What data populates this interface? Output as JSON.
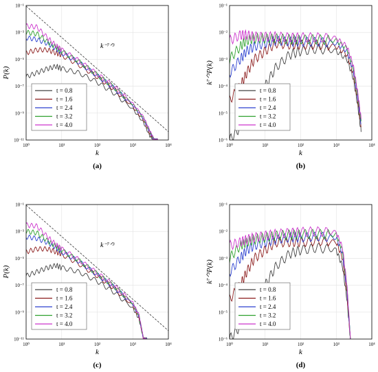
{
  "chart_data": [
    {
      "type": "line",
      "panel_label": "(a)",
      "xlabel": "k",
      "ylabel": "P(k)",
      "xscale": "log",
      "yscale": "log",
      "xlim": [
        1,
        10000
      ],
      "ylim": [
        1e-11,
        0.1
      ],
      "x_ticks": [
        "10⁰",
        "10¹",
        "10²",
        "10³",
        "10⁴"
      ],
      "y_ticks": [
        "10⁻¹¹",
        "10⁻⁹",
        "10⁻⁷",
        "10⁻⁵",
        "10⁻³",
        "10⁻¹"
      ],
      "reference_line": {
        "label": "k⁻⁷ᐟ³",
        "slope": -2.333,
        "x": [
          1,
          10000
        ],
        "y": [
          0.09,
          4.2e-11
        ]
      },
      "legend_position": "bottom-left",
      "series": [
        {
          "name": "t = 0.8",
          "color": "#404040",
          "x": [
            1,
            2,
            4,
            7,
            10,
            30,
            100,
            300,
            1000,
            2000,
            3000,
            4000,
            5000
          ],
          "y": [
            5e-07,
            1e-06,
            2e-06,
            3e-06,
            2e-06,
            1e-06,
            2e-07,
            3e-08,
            2e-09,
            2e-10,
            2e-11,
            1e-11,
            1e-11
          ]
        },
        {
          "name": "t = 1.6",
          "color": "#8b1a1a",
          "x": [
            1,
            2,
            4,
            7,
            10,
            30,
            100,
            300,
            1000,
            2000,
            3000,
            4000,
            5000
          ],
          "y": [
            3e-05,
            5e-05,
            5e-05,
            3e-05,
            2e-05,
            4e-06,
            5e-07,
            6e-08,
            3e-09,
            3e-10,
            3e-11,
            1e-11,
            1e-11
          ]
        },
        {
          "name": "t = 2.4",
          "color": "#2a3fcf",
          "x": [
            1,
            2,
            4,
            7,
            10,
            30,
            100,
            300,
            1000,
            2000,
            3000,
            4000,
            5000
          ],
          "y": [
            0.0004,
            0.0003,
            0.00015,
            6e-05,
            3e-05,
            6e-06,
            6e-07,
            7e-08,
            4e-09,
            4e-10,
            4e-11,
            1e-11,
            1e-11
          ]
        },
        {
          "name": "t = 3.2",
          "color": "#2ca02c",
          "x": [
            1,
            2,
            4,
            7,
            10,
            30,
            100,
            300,
            1000,
            2000,
            3000,
            4000,
            5000
          ],
          "y": [
            0.001,
            0.0008,
            0.0002,
            8e-05,
            4e-05,
            7e-06,
            7e-07,
            8e-08,
            4.5e-09,
            4.5e-10,
            4.5e-11,
            1e-11,
            1e-11
          ]
        },
        {
          "name": "t = 4.0",
          "color": "#cc33cc",
          "x": [
            1,
            2,
            4,
            7,
            10,
            30,
            100,
            300,
            1000,
            2000,
            3000,
            4000,
            5000
          ],
          "y": [
            0.003,
            0.0025,
            0.0004,
            0.0001,
            5e-05,
            8e-06,
            8e-07,
            9e-08,
            5e-09,
            5e-10,
            5e-11,
            1e-11,
            1e-11
          ]
        }
      ]
    },
    {
      "type": "line",
      "panel_label": "(b)",
      "xlabel": "k",
      "ylabel": "k⁷ᐟ³P(k)",
      "xscale": "log",
      "yscale": "log",
      "xlim": [
        1,
        10000
      ],
      "ylim": [
        1e-06,
        0.1
      ],
      "x_ticks": [
        "10⁰",
        "10¹",
        "10²",
        "10³",
        "10⁴"
      ],
      "y_ticks": [
        "10⁻⁶",
        "10⁻⁵",
        "10⁻⁴",
        "10⁻³",
        "10⁻²",
        "10⁻¹"
      ],
      "legend_position": "bottom-left",
      "series": [
        {
          "name": "t = 0.8",
          "color": "#404040",
          "x": [
            1,
            2,
            3,
            5,
            10,
            20,
            50,
            100,
            300,
            1000,
            2000,
            3000,
            4000,
            5000
          ],
          "y": [
            1e-06,
            3e-06,
            1e-05,
            3e-05,
            0.0001,
            0.0005,
            0.0015,
            0.002,
            0.0025,
            0.002,
            0.001,
            0.0002,
            2e-05,
            2e-06
          ]
        },
        {
          "name": "t = 1.6",
          "color": "#8b1a1a",
          "x": [
            1,
            2,
            3,
            5,
            10,
            20,
            50,
            100,
            300,
            1000,
            2000,
            3000,
            4000,
            5000
          ],
          "y": [
            3e-05,
            0.0001,
            0.0003,
            0.001,
            0.002,
            0.004,
            0.0035,
            0.0035,
            0.0035,
            0.003,
            0.0015,
            0.0003,
            3e-05,
            3e-06
          ]
        },
        {
          "name": "t = 2.4",
          "color": "#2a3fcf",
          "x": [
            1,
            2,
            3,
            5,
            10,
            20,
            50,
            100,
            300,
            1000,
            2000,
            3000,
            4000,
            5000
          ],
          "y": [
            0.0003,
            0.001,
            0.002,
            0.003,
            0.004,
            0.005,
            0.0045,
            0.0045,
            0.0045,
            0.004,
            0.002,
            0.0004,
            4e-05,
            4e-06
          ]
        },
        {
          "name": "t = 3.2",
          "color": "#2ca02c",
          "x": [
            1,
            2,
            3,
            5,
            10,
            20,
            50,
            100,
            300,
            1000,
            2000,
            3000,
            4000,
            5000
          ],
          "y": [
            0.001,
            0.003,
            0.005,
            0.006,
            0.006,
            0.006,
            0.0055,
            0.0055,
            0.0055,
            0.005,
            0.0025,
            0.0005,
            5e-05,
            5e-06
          ]
        },
        {
          "name": "t = 4.0",
          "color": "#cc33cc",
          "x": [
            1,
            2,
            3,
            5,
            10,
            20,
            50,
            100,
            300,
            1000,
            2000,
            3000,
            4000,
            5000
          ],
          "y": [
            0.005,
            0.008,
            0.008,
            0.007,
            0.007,
            0.007,
            0.0065,
            0.0065,
            0.0065,
            0.006,
            0.003,
            0.0006,
            6e-05,
            6e-06
          ]
        }
      ]
    },
    {
      "type": "line",
      "panel_label": "(c)",
      "xlabel": "k",
      "ylabel": "P(k)",
      "xscale": "log",
      "yscale": "log",
      "xlim": [
        1,
        10000
      ],
      "ylim": [
        1e-11,
        0.1
      ],
      "x_ticks": [
        "10⁰",
        "10¹",
        "10²",
        "10³",
        "10⁴"
      ],
      "y_ticks": [
        "10⁻¹¹",
        "10⁻⁹",
        "10⁻⁷",
        "10⁻⁵",
        "10⁻³",
        "10⁻¹"
      ],
      "reference_line": {
        "label": "k⁻⁷ᐟ³",
        "slope": -2.333,
        "x": [
          1,
          10000
        ],
        "y": [
          0.09,
          4.2e-11
        ]
      },
      "legend_position": "bottom-left",
      "series": [
        {
          "name": "t = 0.8",
          "color": "#404040",
          "x": [
            1,
            2,
            4,
            7,
            10,
            30,
            100,
            300,
            1000,
            1500,
            2000,
            2500
          ],
          "y": [
            5e-07,
            1e-06,
            2e-06,
            3e-06,
            2e-06,
            1e-06,
            2e-07,
            3e-08,
            2e-09,
            3e-10,
            1e-11,
            1e-11
          ]
        },
        {
          "name": "t = 1.6",
          "color": "#8b1a1a",
          "x": [
            1,
            2,
            4,
            7,
            10,
            30,
            100,
            300,
            1000,
            1500,
            2000,
            2500
          ],
          "y": [
            3e-05,
            5e-05,
            5e-05,
            3e-05,
            2e-05,
            4e-06,
            5e-07,
            6e-08,
            3e-09,
            4e-10,
            1e-11,
            1e-11
          ]
        },
        {
          "name": "t = 2.4",
          "color": "#2a3fcf",
          "x": [
            1,
            2,
            4,
            7,
            10,
            30,
            100,
            300,
            1000,
            1500,
            2000,
            2500
          ],
          "y": [
            0.0004,
            0.0003,
            0.00015,
            6e-05,
            3e-05,
            6e-06,
            6e-07,
            7e-08,
            4e-09,
            5e-10,
            1e-11,
            1e-11
          ]
        },
        {
          "name": "t = 3.2",
          "color": "#2ca02c",
          "x": [
            1,
            2,
            4,
            7,
            10,
            30,
            100,
            300,
            1000,
            1500,
            2000,
            2500
          ],
          "y": [
            0.001,
            0.0008,
            0.0002,
            8e-05,
            4e-05,
            7e-06,
            7e-07,
            8e-08,
            4.5e-09,
            5.5e-10,
            1e-11,
            1e-11
          ]
        },
        {
          "name": "t = 4.0",
          "color": "#cc33cc",
          "x": [
            1,
            2,
            4,
            7,
            10,
            30,
            100,
            300,
            1000,
            1500,
            2000,
            2500
          ],
          "y": [
            0.003,
            0.0025,
            0.0004,
            0.0001,
            5e-05,
            8e-06,
            8e-07,
            9e-08,
            5e-09,
            6e-10,
            1e-11,
            1e-11
          ]
        }
      ]
    },
    {
      "type": "line",
      "panel_label": "(d)",
      "xlabel": "k",
      "ylabel": "k⁷ᐟ³P(k)",
      "xscale": "log",
      "yscale": "log",
      "xlim": [
        1,
        10000
      ],
      "ylim": [
        1e-06,
        0.1
      ],
      "x_ticks": [
        "10⁰",
        "10¹",
        "10²",
        "10³",
        "10⁴"
      ],
      "y_ticks": [
        "10⁻⁶",
        "10⁻⁵",
        "10⁻⁴",
        "10⁻³",
        "10⁻²",
        "10⁻¹"
      ],
      "legend_position": "bottom-left",
      "series": [
        {
          "name": "t = 0.8",
          "color": "#404040",
          "x": [
            1,
            2,
            3,
            5,
            10,
            20,
            50,
            100,
            300,
            1000,
            1500,
            2000,
            2500
          ],
          "y": [
            1e-06,
            3e-06,
            1e-05,
            3e-05,
            0.0001,
            0.0005,
            0.0015,
            0.002,
            0.0025,
            0.002,
            0.0005,
            3e-05,
            1e-06
          ]
        },
        {
          "name": "t = 1.6",
          "color": "#8b1a1a",
          "x": [
            1,
            2,
            3,
            5,
            10,
            20,
            50,
            100,
            300,
            1000,
            1500,
            2000,
            2500
          ],
          "y": [
            3e-05,
            0.0001,
            0.0003,
            0.001,
            0.002,
            0.004,
            0.004,
            0.004,
            0.0045,
            0.004,
            0.001,
            5e-05,
            1e-06
          ]
        },
        {
          "name": "t = 2.4",
          "color": "#2a3fcf",
          "x": [
            1,
            2,
            3,
            5,
            10,
            20,
            50,
            100,
            300,
            1000,
            1500,
            2000,
            2500
          ],
          "y": [
            0.0003,
            0.001,
            0.002,
            0.003,
            0.004,
            0.005,
            0.006,
            0.006,
            0.0065,
            0.006,
            0.0015,
            7e-05,
            1e-06
          ]
        },
        {
          "name": "t = 3.2",
          "color": "#2ca02c",
          "x": [
            1,
            2,
            3,
            5,
            10,
            20,
            50,
            100,
            300,
            1000,
            1500,
            2000,
            2500
          ],
          "y": [
            0.001,
            0.003,
            0.004,
            0.005,
            0.006,
            0.007,
            0.0075,
            0.008,
            0.008,
            0.0075,
            0.002,
            9e-05,
            1e-06
          ]
        },
        {
          "name": "t = 4.0",
          "color": "#cc33cc",
          "x": [
            1,
            2,
            3,
            5,
            10,
            20,
            50,
            100,
            300,
            1000,
            1500,
            2000,
            2500
          ],
          "y": [
            0.003,
            0.004,
            0.005,
            0.006,
            0.007,
            0.008,
            0.009,
            0.0095,
            0.01,
            0.009,
            0.0025,
            0.0001,
            1e-06
          ]
        }
      ]
    }
  ]
}
